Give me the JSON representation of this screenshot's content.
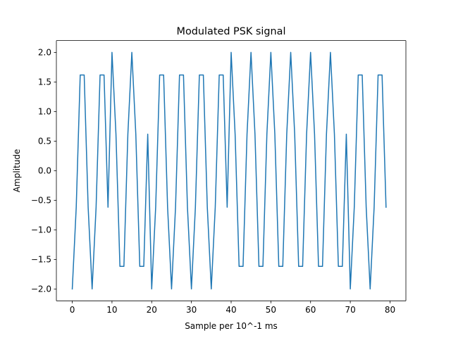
{
  "chart_data": {
    "type": "line",
    "title": "Modulated PSK signal",
    "xlabel": "Sample per 10^-1 ms",
    "ylabel": "Amplitude",
    "xlim": [
      -4,
      84
    ],
    "ylim": [
      -2.2,
      2.2
    ],
    "grid": false,
    "xticks": [
      0,
      10,
      20,
      30,
      40,
      50,
      60,
      70,
      80
    ],
    "yticks": [
      -2.0,
      -1.5,
      -1.0,
      -0.5,
      0.0,
      0.5,
      1.0,
      1.5,
      2.0
    ],
    "xtick_labels": [
      "0",
      "10",
      "20",
      "30",
      "40",
      "50",
      "60",
      "70",
      "80"
    ],
    "ytick_labels": [
      "−2.0",
      "−1.5",
      "−1.0",
      "−0.5",
      "0.0",
      "0.5",
      "1.0",
      "1.5",
      "2.0"
    ],
    "series": [
      {
        "color": "#1f77b4",
        "x": [
          0,
          1,
          2,
          3,
          4,
          5,
          6,
          7,
          8,
          9,
          10,
          11,
          12,
          13,
          14,
          15,
          16,
          17,
          18,
          19,
          20,
          21,
          22,
          23,
          24,
          25,
          26,
          27,
          28,
          29,
          30,
          31,
          32,
          33,
          34,
          35,
          36,
          37,
          38,
          39,
          40,
          41,
          42,
          43,
          44,
          45,
          46,
          47,
          48,
          49,
          50,
          51,
          52,
          53,
          54,
          55,
          56,
          57,
          58,
          59,
          60,
          61,
          62,
          63,
          64,
          65,
          66,
          67,
          68,
          69,
          70,
          71,
          72,
          73,
          74,
          75,
          76,
          77,
          78,
          79
        ],
        "y": [
          -2.0,
          -0.618,
          1.618,
          1.618,
          -0.618,
          -2.0,
          -0.618,
          1.618,
          1.618,
          -0.618,
          2.0,
          0.618,
          -1.618,
          -1.618,
          0.618,
          2.0,
          0.618,
          -1.618,
          -1.618,
          0.618,
          -2.0,
          -0.618,
          1.618,
          1.618,
          -0.618,
          -2.0,
          -0.618,
          1.618,
          1.618,
          -0.618,
          -2.0,
          -0.618,
          1.618,
          1.618,
          -0.618,
          -2.0,
          -0.618,
          1.618,
          1.618,
          -0.618,
          2.0,
          0.618,
          -1.618,
          -1.618,
          0.618,
          2.0,
          0.618,
          -1.618,
          -1.618,
          0.618,
          2.0,
          0.618,
          -1.618,
          -1.618,
          0.618,
          2.0,
          0.618,
          -1.618,
          -1.618,
          0.618,
          2.0,
          0.618,
          -1.618,
          -1.618,
          0.618,
          2.0,
          0.618,
          -1.618,
          -1.618,
          0.618,
          -2.0,
          -0.618,
          1.618,
          1.618,
          -0.618,
          -2.0,
          -0.618,
          1.618,
          1.618,
          -0.618
        ]
      }
    ]
  }
}
